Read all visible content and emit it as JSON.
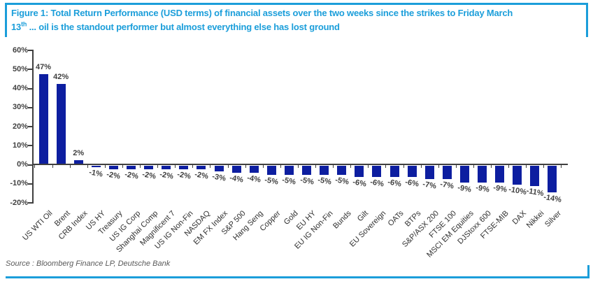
{
  "figure": {
    "title_line1": "Figure 1: Total Return Performance (USD terms) of financial assets over the two weeks since the strikes to Friday March",
    "title_line2_number": "13",
    "title_line2_superscript": "th",
    "title_line2_rest": " ... oil is the standout performer but almost everything else has lost ground",
    "source": "Source : Bloomberg Finance LP, Deutsche Bank"
  },
  "colors": {
    "accent_blue": "#1b9eda",
    "bar_navy": "#0d1ea0",
    "axis_gray": "#3f3f3f",
    "source_gray": "#5a5a5a"
  },
  "chart_data": {
    "type": "bar",
    "title": "Total Return Performance (USD terms) of financial assets over the two weeks since the strikes to Friday March 13th",
    "xlabel": "",
    "ylabel": "",
    "ylim": [
      -20,
      60
    ],
    "grid": false,
    "legend": null,
    "y_ticks": [
      "60%",
      "50%",
      "40%",
      "30%",
      "20%",
      "10%",
      "0%",
      "-10%",
      "-20%"
    ],
    "categories": [
      "US WTI Oil",
      "Brent",
      "CRB Index",
      "US HY",
      "Treasury",
      "US IG Corp",
      "Shanghai Comp",
      "Magnificent 7",
      "US IG Non-Fin",
      "NASDAQ",
      "EM FX Index",
      "S&P 500",
      "Hang Seng",
      "Copper",
      "Gold",
      "EU HY",
      "EU IG Non-Fin",
      "Bunds",
      "Gilt",
      "EU Sovereign",
      "OATs",
      "BTPs",
      "S&P/ASX 200",
      "FTSE 100",
      "MSCI EM Equities",
      "DJStoxx 600",
      "FTSE-MIB",
      "DAX",
      "Nikkei",
      "Silver"
    ],
    "values": [
      47,
      42,
      2,
      -1,
      -2,
      -2,
      -2,
      -2,
      -2,
      -2,
      -3,
      -4,
      -4,
      -5,
      -5,
      -5,
      -5,
      -5,
      -6,
      -6,
      -6,
      -6,
      -7,
      -7,
      -9,
      -9,
      -9,
      -10,
      -11,
      -14
    ],
    "value_labels": [
      "47%",
      "42%",
      "2%",
      "-1%",
      "-2%",
      "-2%",
      "-2%",
      "-2%",
      "-2%",
      "-2%",
      "-3%",
      "-4%",
      "-4%",
      "-5%",
      "-5%",
      "-5%",
      "-5%",
      "-5%",
      "-6%",
      "-6%",
      "-6%",
      "-6%",
      "-7%",
      "-7%",
      "-9%",
      "-9%",
      "-9%",
      "-10%",
      "-11%",
      "-14%"
    ]
  }
}
